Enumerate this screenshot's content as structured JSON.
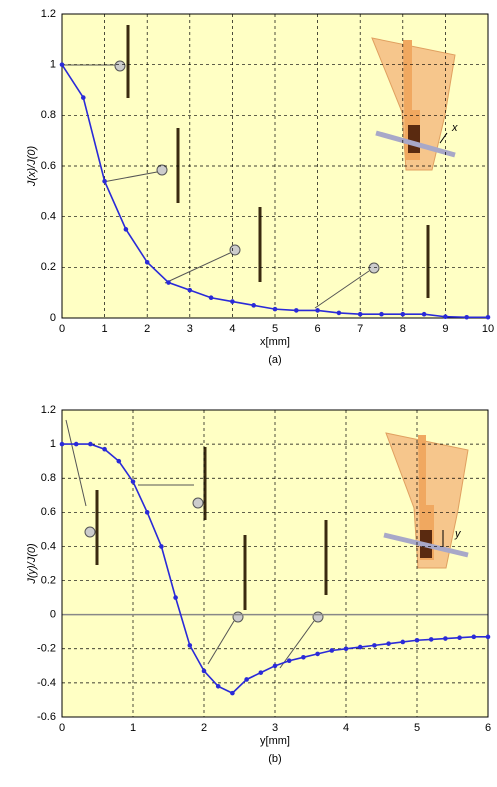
{
  "chart_data": [
    {
      "type": "line",
      "ylabel": "J(x)/J(0)",
      "xlabel": "x[mm]",
      "caption": "(a)",
      "inset_label": "x",
      "x": [
        0,
        0.5,
        1,
        1.5,
        2,
        2.5,
        3,
        3.5,
        4,
        4.5,
        5,
        5.5,
        6,
        6.5,
        7,
        7.5,
        8,
        8.5,
        9,
        9.5,
        10
      ],
      "series": [
        {
          "color": "#2a2ad8",
          "values": [
            1,
            0.87,
            0.54,
            0.35,
            0.22,
            0.14,
            0.11,
            0.08,
            0.065,
            0.05,
            0.035,
            0.03,
            0.03,
            0.02,
            0.015,
            0.015,
            0.015,
            0.015,
            0.005,
            0.003,
            0.003
          ]
        }
      ],
      "xlim": [
        0,
        10
      ],
      "xticks": [
        0,
        1,
        2,
        3,
        4,
        5,
        6,
        7,
        8,
        9,
        10
      ],
      "ylim": [
        0,
        1.2
      ],
      "yticks": [
        0,
        0.2,
        0.4,
        0.6,
        0.8,
        1,
        1.2
      ],
      "grid": true
    },
    {
      "type": "line",
      "ylabel": "J(y)/J(0)",
      "xlabel": "y[mm]",
      "caption": "(b)",
      "inset_label": "y",
      "x": [
        0,
        0.2,
        0.4,
        0.6,
        0.8,
        1,
        1.2,
        1.4,
        1.6,
        1.8,
        2,
        2.2,
        2.4,
        2.6,
        2.8,
        3,
        3.2,
        3.4,
        3.6,
        3.8,
        4,
        4.2,
        4.4,
        4.6,
        4.8,
        5,
        5.2,
        5.4,
        5.6,
        5.8,
        6
      ],
      "series": [
        {
          "color": "#2a2ad8",
          "values": [
            1,
            1,
            1,
            0.97,
            0.9,
            0.78,
            0.6,
            0.4,
            0.1,
            -0.18,
            -0.33,
            -0.42,
            -0.46,
            -0.38,
            -0.34,
            -0.3,
            -0.27,
            -0.25,
            -0.23,
            -0.21,
            -0.2,
            -0.19,
            -0.18,
            -0.17,
            -0.16,
            -0.15,
            -0.145,
            -0.14,
            -0.135,
            -0.13,
            -0.13
          ]
        }
      ],
      "xlim": [
        0,
        6
      ],
      "xticks": [
        0,
        1,
        2,
        3,
        4,
        5,
        6
      ],
      "ylim": [
        -0.6,
        1.2
      ],
      "yticks": [
        -0.6,
        -0.4,
        -0.2,
        0,
        0.2,
        0.4,
        0.6,
        0.8,
        1,
        1.2
      ],
      "grid": true
    }
  ]
}
